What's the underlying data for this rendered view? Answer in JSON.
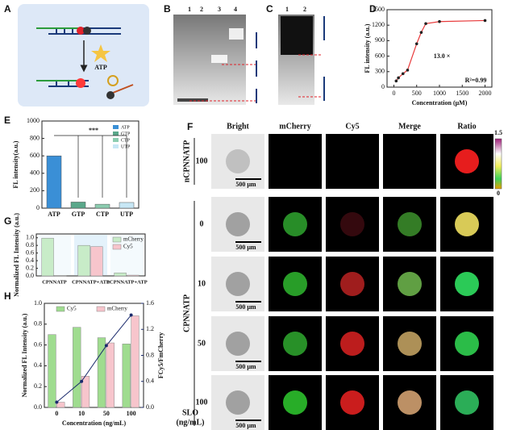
{
  "panel_labels": [
    "A",
    "B",
    "C",
    "D",
    "E",
    "F",
    "G",
    "H"
  ],
  "scheme": {
    "label": "ATP"
  },
  "gel_b": {
    "lanes": [
      "1",
      "2",
      "3",
      "4"
    ]
  },
  "gel_c": {
    "lanes": [
      "1",
      "2"
    ]
  },
  "chart_data": [
    {
      "type": "scatter",
      "x_label": "Concentration (μM)",
      "y_label": "FL intensity (a.u.)",
      "x": [
        50,
        100,
        200,
        300,
        500,
        600,
        700,
        1000,
        2000
      ],
      "series": [
        {
          "color": "#e8393a",
          "values": [
            120,
            180,
            260,
            330,
            840,
            1060,
            1230,
            1270,
            1290
          ]
        }
      ],
      "xlim": [
        -150,
        2150
      ],
      "xticks": [
        0,
        500,
        1000,
        1500,
        2000
      ],
      "ylim": [
        0,
        1500
      ],
      "yticks": [
        0,
        300,
        600,
        900,
        1200,
        1500
      ],
      "annotations": [
        "13.0 ×",
        "R²=0.99"
      ]
    },
    {
      "type": "bar",
      "y_label": "FL intensity(a.u.)",
      "categories": [
        "ATP",
        "GTP",
        "CTP",
        "UTP"
      ],
      "values": [
        600,
        70,
        45,
        65
      ],
      "colors": [
        "#3a8fd6",
        "#5aa88a",
        "#8ccdb0",
        "#c7e7f5"
      ],
      "ylim": [
        0,
        1000
      ],
      "yticks": [
        0,
        200,
        400,
        600,
        800,
        1000
      ],
      "legend": "upper right",
      "annotations": [
        "***"
      ]
    },
    {
      "type": "bar",
      "y_label": "Normalized FL Intensity (a.u.)",
      "categories": [
        "CPNNATP",
        "CPNNATP+ATP",
        "nCPNNATP+ATP"
      ],
      "series": [
        {
          "name": "mCherry",
          "color": "#c8ecc8",
          "values": [
            0.99,
            0.8,
            0.08
          ]
        },
        {
          "name": "Cy5",
          "color": "#f7c5cc",
          "values": [
            0.01,
            0.77,
            0.02
          ]
        }
      ],
      "ylim": [
        0,
        1.1
      ],
      "yticks": [
        {
          "value": 0,
          "label": "0.0"
        },
        0.2,
        0.4,
        0.6,
        0.8,
        {
          "value": 1,
          "label": "1.0"
        }
      ],
      "legend": "upper right"
    },
    {
      "type": "bar",
      "x_label": "Concentration (ng/mL)",
      "y_label": "Normalized FL Intensity (a.u.)",
      "y2_label": "FCy5/FmCherry",
      "categories": [
        "0",
        "10",
        "50",
        "100"
      ],
      "series": [
        {
          "name": "Cy5",
          "color": "#9fdc8f",
          "values": [
            0.7,
            0.77,
            0.67,
            0.61
          ]
        },
        {
          "name": "mCherry",
          "color": "#f7c5cc",
          "values": [
            0.05,
            0.3,
            0.62,
            0.88
          ]
        },
        {
          "type": "line",
          "axis": "y2",
          "color": "#1a2a6c",
          "values": [
            0.08,
            0.4,
            0.95,
            1.42
          ]
        }
      ],
      "ylim": [
        0,
        1.0
      ],
      "yticks": [
        {
          "value": 0,
          "label": "0.0"
        },
        0.2,
        0.4,
        0.6,
        0.8,
        {
          "value": 1,
          "label": "1.0"
        }
      ],
      "y2lim": [
        0,
        1.6
      ],
      "y2ticks": [
        {
          "value": 0,
          "label": "0.0"
        },
        0.4,
        0.8,
        1.2,
        1.6
      ],
      "legend": "upper left"
    }
  ],
  "microscopy": {
    "columns": [
      "Bright",
      "mCherry",
      "Cy5",
      "Merge",
      "Ratio"
    ],
    "groups": [
      {
        "label": "nCPNNATP",
        "rows": [
          "100"
        ]
      },
      {
        "label": "CPNNATP",
        "rows": [
          "0",
          "10",
          "50",
          "100"
        ]
      }
    ],
    "unit": [
      "SLO",
      "(ng/mL)"
    ],
    "scale_bar": "500 μm",
    "colorbar": [
      "1.5",
      "0"
    ]
  }
}
